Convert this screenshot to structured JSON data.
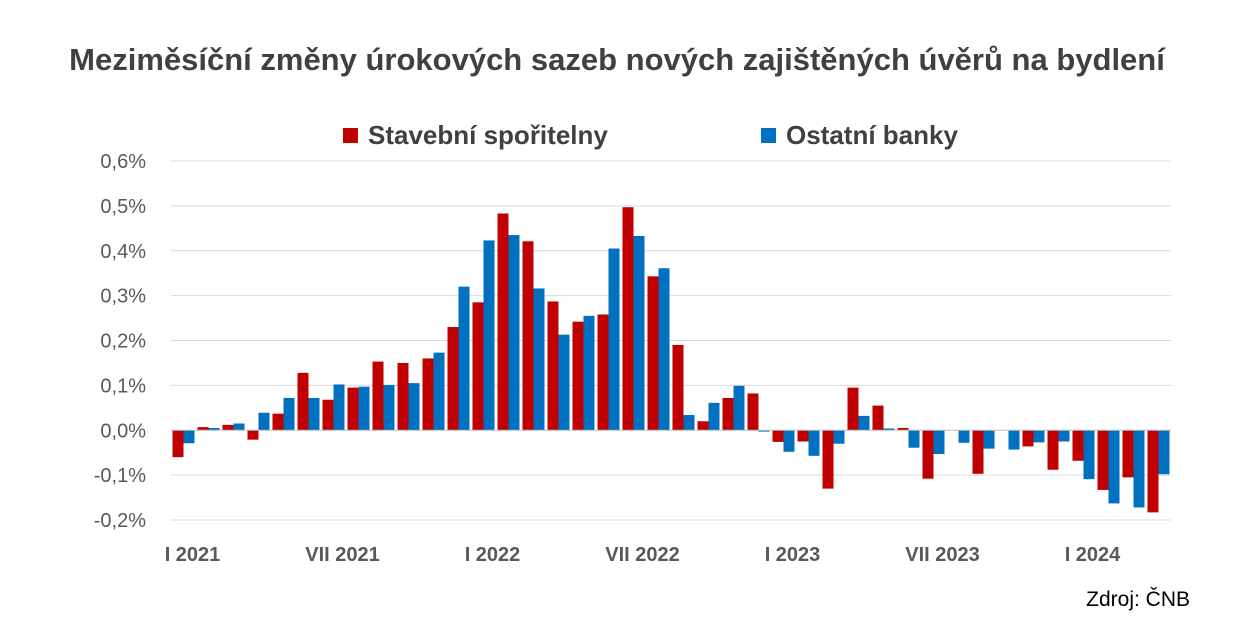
{
  "chart_data": {
    "type": "bar",
    "title": "Meziměsíční změny úrokových sazeb nových zajištěných úvěrů na bydlení",
    "xlabel": "",
    "ylabel": "",
    "ylim": [
      -0.2,
      0.6
    ],
    "yticks": [
      -0.2,
      -0.1,
      0.0,
      0.1,
      0.2,
      0.3,
      0.4,
      0.5,
      0.6
    ],
    "ytick_labels": [
      "-0,2%",
      "-0,1%",
      "0,0%",
      "0,1%",
      "0,2%",
      "0,3%",
      "0,4%",
      "0,5%",
      "0,6%"
    ],
    "grid": true,
    "legend_position": "top",
    "categories": [
      "I 2021",
      "II 2021",
      "III 2021",
      "IV 2021",
      "V 2021",
      "VI 2021",
      "VII 2021",
      "VIII 2021",
      "IX 2021",
      "X 2021",
      "XI 2021",
      "XII 2021",
      "I 2022",
      "II 2022",
      "III 2022",
      "IV 2022",
      "V 2022",
      "VI 2022",
      "VII 2022",
      "VIII 2022",
      "IX 2022",
      "X 2022",
      "XI 2022",
      "XII 2022",
      "I 2023",
      "II 2023",
      "III 2023",
      "IV 2023",
      "V 2023",
      "VI 2023",
      "VII 2023",
      "VIII 2023",
      "IX 2023",
      "X 2023",
      "XI 2023",
      "XII 2023",
      "I 2024",
      "II 2024",
      "III 2024",
      "IV 2024"
    ],
    "xtick_labels": [
      {
        "index": 0,
        "label": "I 2021"
      },
      {
        "index": 6,
        "label": "VII 2021"
      },
      {
        "index": 12,
        "label": "I 2022"
      },
      {
        "index": 18,
        "label": "VII 2022"
      },
      {
        "index": 24,
        "label": "I 2023"
      },
      {
        "index": 30,
        "label": "VII 2023"
      },
      {
        "index": 36,
        "label": "I 2024"
      }
    ],
    "series": [
      {
        "name": "Stavební spořitelny",
        "color": "#C00000",
        "values": [
          -0.06,
          0.007,
          0.012,
          -0.021,
          0.037,
          0.128,
          0.068,
          0.095,
          0.153,
          0.15,
          0.16,
          0.23,
          0.285,
          0.483,
          0.421,
          0.287,
          0.242,
          0.258,
          0.497,
          0.343,
          0.19,
          0.02,
          0.072,
          0.082,
          -0.026,
          -0.025,
          -0.13,
          0.095,
          0.055,
          0.005,
          -0.108,
          0.0,
          -0.097,
          0.0,
          -0.036,
          -0.088,
          -0.068,
          -0.133,
          -0.105,
          -0.183
        ]
      },
      {
        "name": "Ostatní banky",
        "color": "#0070C0",
        "values": [
          -0.029,
          0.005,
          0.015,
          0.039,
          0.072,
          0.072,
          0.102,
          0.097,
          0.101,
          0.105,
          0.173,
          0.32,
          0.423,
          0.435,
          0.316,
          0.213,
          0.255,
          0.405,
          0.433,
          0.361,
          0.034,
          0.061,
          0.099,
          -0.003,
          -0.048,
          -0.057,
          -0.03,
          0.032,
          0.004,
          -0.039,
          -0.053,
          -0.028,
          -0.041,
          -0.043,
          -0.027,
          -0.025,
          -0.109,
          -0.163,
          -0.172,
          -0.098
        ]
      }
    ]
  },
  "source": "Zdroj: ČNB"
}
